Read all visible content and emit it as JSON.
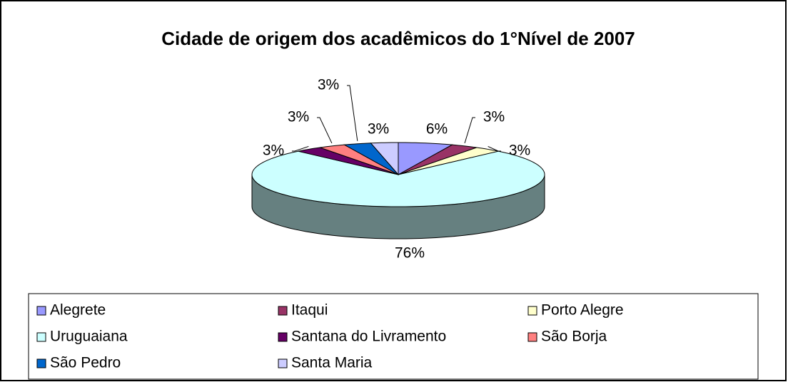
{
  "chart_data": {
    "type": "pie3d",
    "title": "Cidade de origem dos acadêmicos do 1°Nível de 2007",
    "categories": [
      "Alegrete",
      "Itaqui",
      "Porto Alegre",
      "Uruguaiana",
      "Santana do Livramento",
      "São Borja",
      "São Pedro",
      "Santa Maria"
    ],
    "values": [
      6,
      3,
      3,
      76,
      3,
      3,
      3,
      3
    ],
    "value_labels": [
      "6%",
      "3%",
      "3%",
      "76%",
      "3%",
      "3%",
      "3%",
      "3%"
    ],
    "colors": [
      "#9999ff",
      "#993366",
      "#ffffcc",
      "#ccffff",
      "#660066",
      "#ff8080",
      "#0066cc",
      "#ccccff"
    ],
    "legend": "bottom"
  }
}
